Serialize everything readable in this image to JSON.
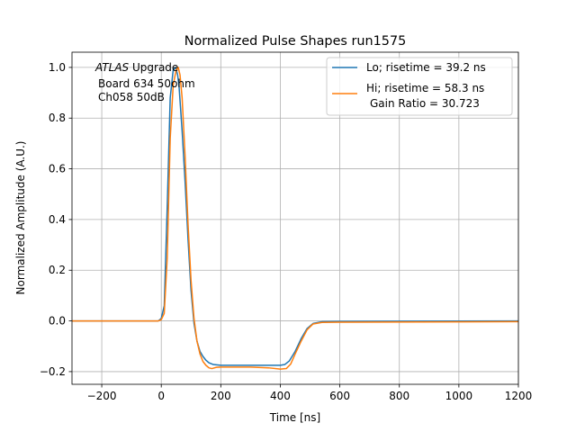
{
  "chart_data": {
    "type": "line",
    "title": "Normalized Pulse Shapes run1575",
    "xlabel": "Time [ns]",
    "ylabel": "Normalized Amplitude (A.U.)",
    "xlim": [
      -300,
      1200
    ],
    "ylim": [
      -0.25,
      1.06
    ],
    "xticks": [
      -200,
      0,
      200,
      400,
      600,
      800,
      1000,
      1200
    ],
    "xtick_labels": [
      "−200",
      "0",
      "200",
      "400",
      "600",
      "800",
      "1000",
      "1200"
    ],
    "yticks": [
      -0.2,
      0.0,
      0.2,
      0.4,
      0.6,
      0.8,
      1.0
    ],
    "ytick_labels": [
      "−0.2",
      "0.0",
      "0.2",
      "0.4",
      "0.6",
      "0.8",
      "1.0"
    ],
    "grid": true,
    "legend_position": "top-right",
    "annotation": {
      "italic_part": "ATLAS",
      "line1_rest": " Upgrade",
      "line2": "Board 634 50ohm",
      "line3": "Ch058 50dB"
    },
    "series": [
      {
        "name": "Lo; risetime = 39.2 ns",
        "color": "#1f77b4",
        "points": [
          [
            -300,
            0.0
          ],
          [
            -10,
            0.0
          ],
          [
            0,
            0.01
          ],
          [
            10,
            0.06
          ],
          [
            20,
            0.45
          ],
          [
            30,
            0.88
          ],
          [
            40,
            0.99
          ],
          [
            48,
            1.0
          ],
          [
            55,
            0.97
          ],
          [
            60,
            0.92
          ],
          [
            70,
            0.75
          ],
          [
            80,
            0.55
          ],
          [
            90,
            0.32
          ],
          [
            100,
            0.12
          ],
          [
            110,
            -0.01
          ],
          [
            120,
            -0.08
          ],
          [
            130,
            -0.12
          ],
          [
            140,
            -0.14
          ],
          [
            150,
            -0.155
          ],
          [
            160,
            -0.165
          ],
          [
            175,
            -0.172
          ],
          [
            200,
            -0.175
          ],
          [
            300,
            -0.175
          ],
          [
            400,
            -0.175
          ],
          [
            415,
            -0.172
          ],
          [
            430,
            -0.158
          ],
          [
            450,
            -0.12
          ],
          [
            470,
            -0.07
          ],
          [
            490,
            -0.03
          ],
          [
            510,
            -0.01
          ],
          [
            540,
            -0.003
          ],
          [
            600,
            -0.002
          ],
          [
            1200,
            0.0
          ]
        ]
      },
      {
        "name": "Hi; risetime = 58.3 ns",
        "name_line2": "Gain Ratio = 30.723",
        "color": "#ff7f0e",
        "points": [
          [
            -300,
            0.0
          ],
          [
            -10,
            0.0
          ],
          [
            0,
            0.005
          ],
          [
            10,
            0.03
          ],
          [
            20,
            0.25
          ],
          [
            30,
            0.72
          ],
          [
            40,
            0.93
          ],
          [
            50,
            0.99
          ],
          [
            57,
            1.0
          ],
          [
            63,
            0.97
          ],
          [
            70,
            0.88
          ],
          [
            80,
            0.65
          ],
          [
            90,
            0.38
          ],
          [
            100,
            0.16
          ],
          [
            110,
            0.01
          ],
          [
            120,
            -0.08
          ],
          [
            130,
            -0.13
          ],
          [
            140,
            -0.16
          ],
          [
            150,
            -0.175
          ],
          [
            160,
            -0.185
          ],
          [
            170,
            -0.188
          ],
          [
            185,
            -0.183
          ],
          [
            200,
            -0.182
          ],
          [
            300,
            -0.182
          ],
          [
            360,
            -0.185
          ],
          [
            400,
            -0.19
          ],
          [
            420,
            -0.188
          ],
          [
            435,
            -0.17
          ],
          [
            450,
            -0.13
          ],
          [
            470,
            -0.08
          ],
          [
            490,
            -0.035
          ],
          [
            510,
            -0.012
          ],
          [
            540,
            -0.006
          ],
          [
            600,
            -0.005
          ],
          [
            1200,
            -0.003
          ]
        ]
      }
    ]
  }
}
